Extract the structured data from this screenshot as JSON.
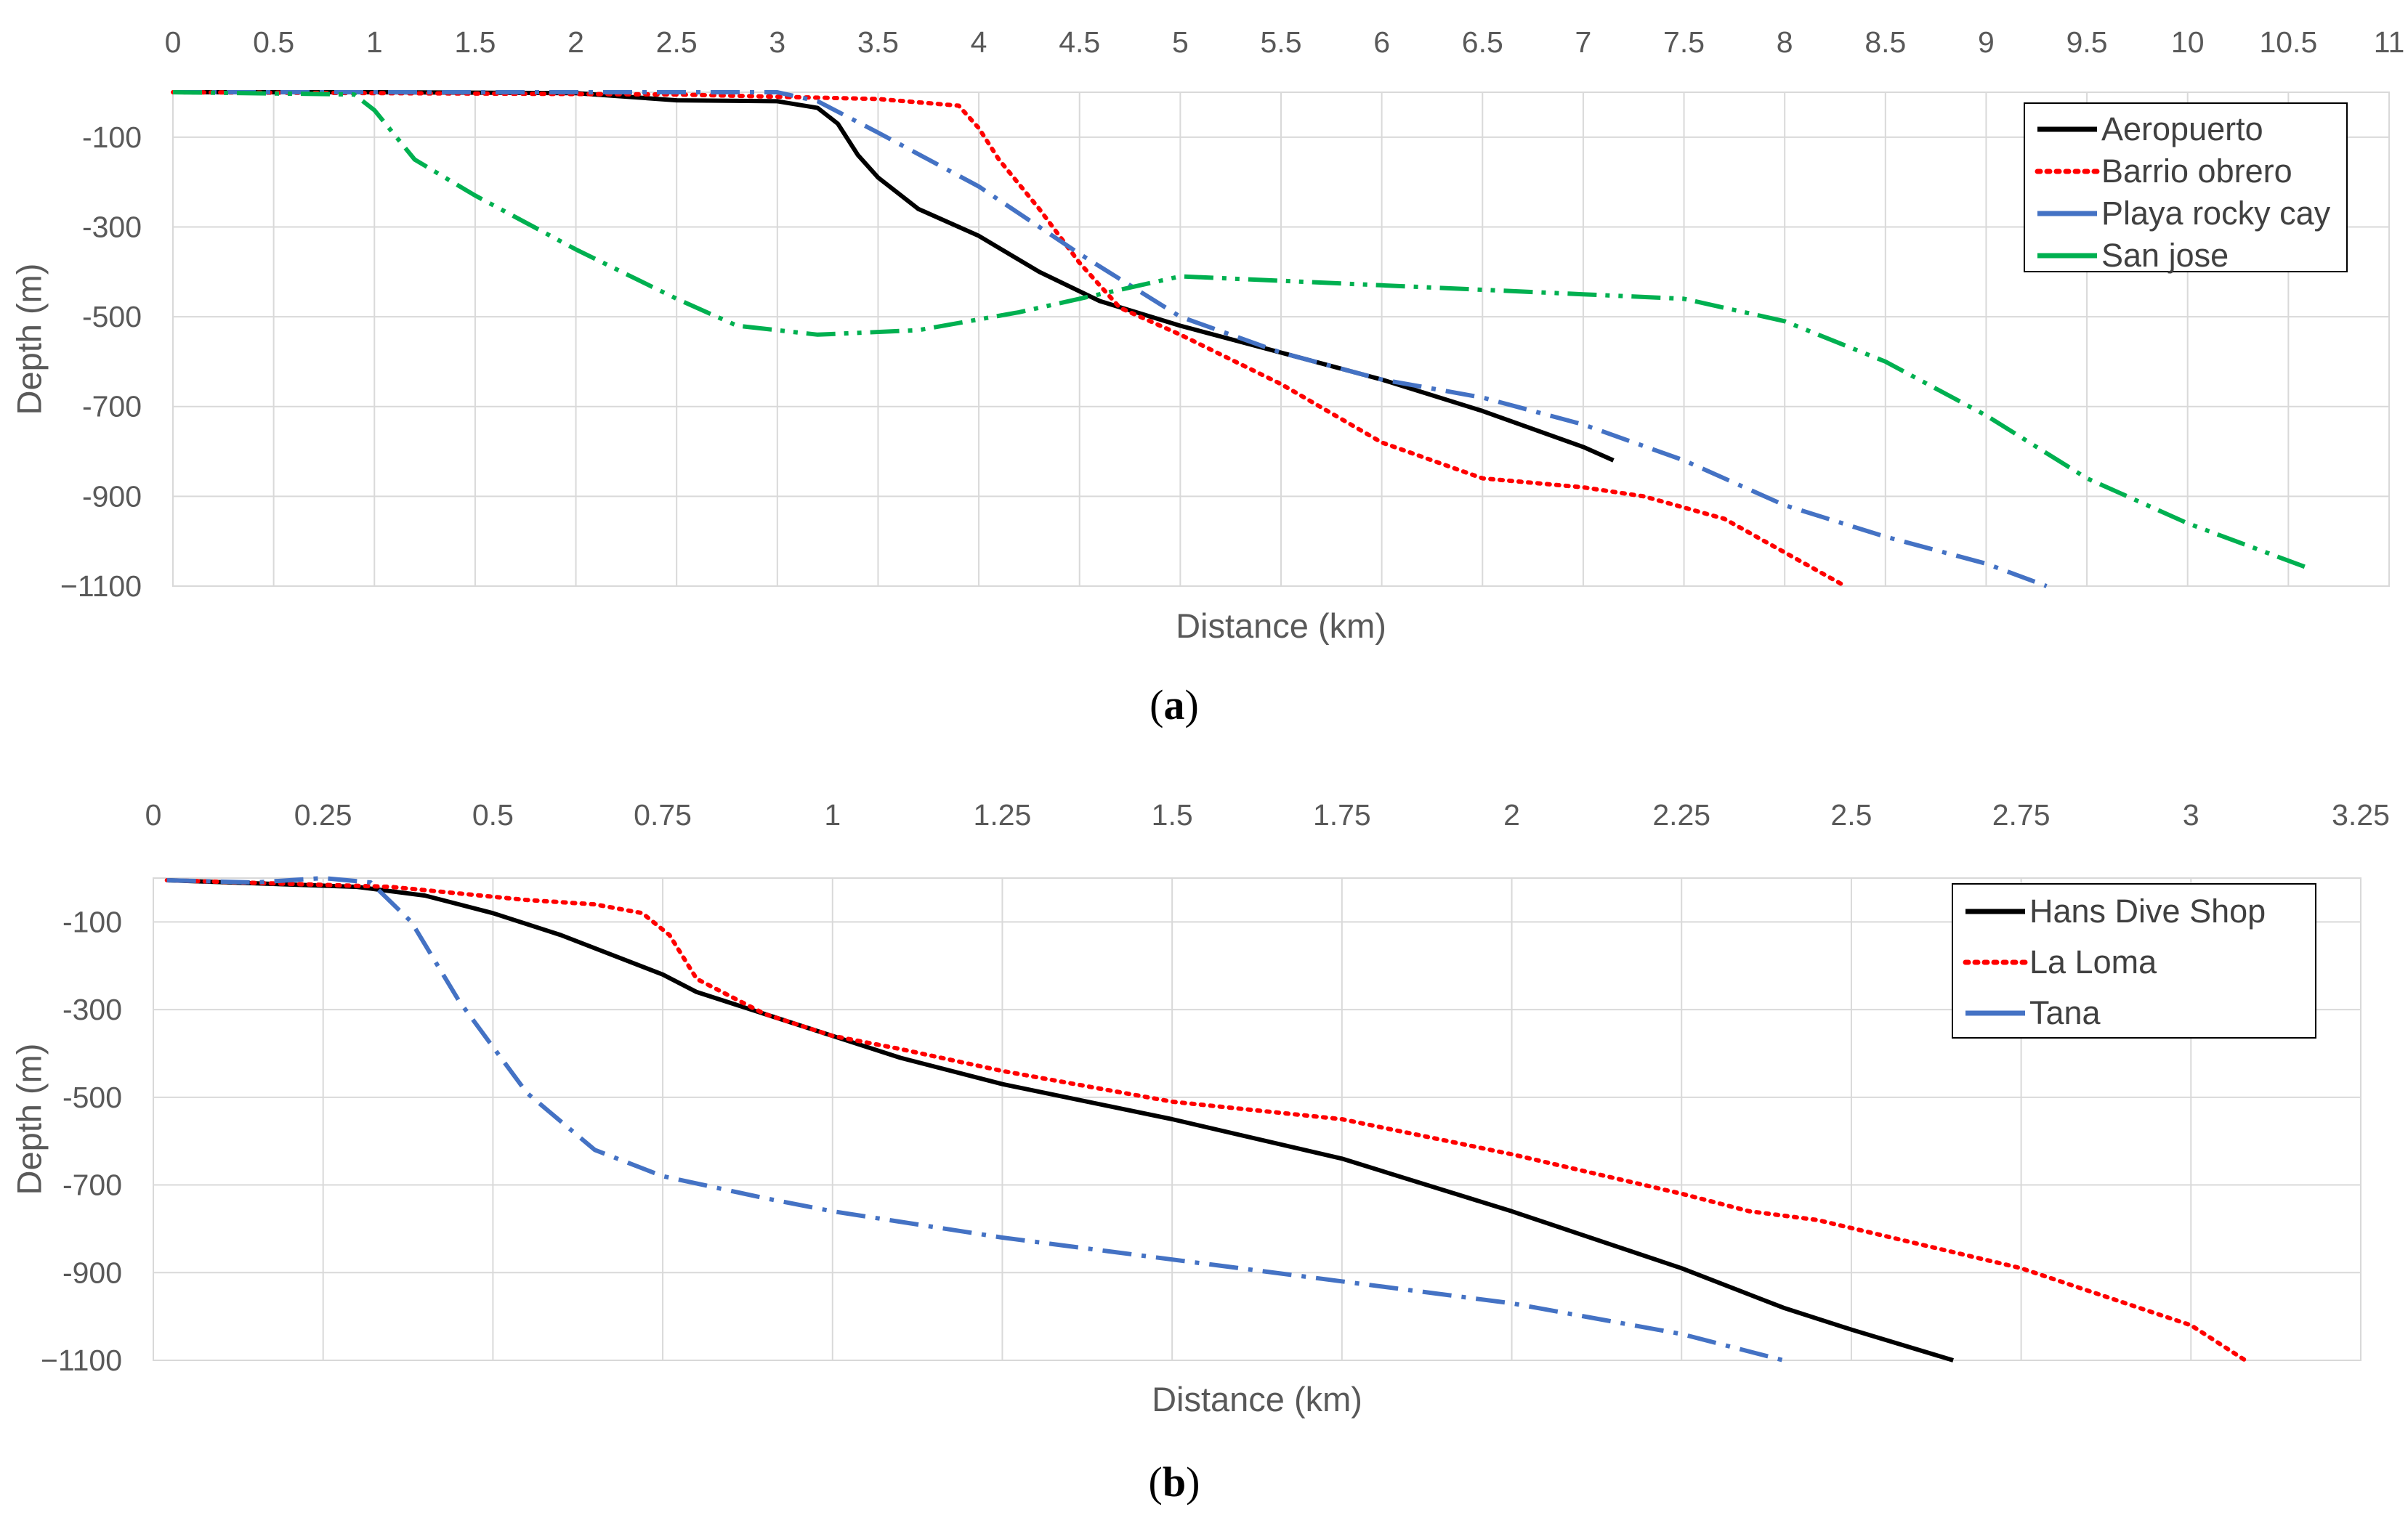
{
  "chart_data": [
    {
      "type": "line",
      "panel_label": "a",
      "xlabel": "Distance (km)",
      "ylabel": "Depth (m)",
      "xlim": [
        0,
        11
      ],
      "ylim": [
        -1100,
        0
      ],
      "x_axis_position": "top",
      "x_ticks": [
        0,
        0.5,
        1,
        1.5,
        2,
        2.5,
        3,
        3.5,
        4,
        4.5,
        5,
        5.5,
        6,
        6.5,
        7,
        7.5,
        8,
        8.5,
        9,
        9.5,
        10,
        10.5,
        11
      ],
      "x_tick_labels": [
        "0",
        "0.5",
        "1",
        "1.5",
        "2",
        "2.5",
        "3",
        "3.5",
        "4",
        "4.5",
        "5",
        "5.5",
        "6",
        "6.5",
        "7",
        "7.5",
        "8",
        "8.5",
        "9",
        "9.5",
        "10",
        "10.5",
        "11"
      ],
      "y_ticks": [
        -100,
        -300,
        -500,
        -700,
        -900,
        -1100
      ],
      "y_tick_labels": [
        "-100",
        "-300",
        "-500",
        "-700",
        "-900",
        "−1100"
      ],
      "grid": true,
      "legend_position": "top-right",
      "series": [
        {
          "name": "Aeropuerto",
          "color": "#000000",
          "dash": "solid",
          "points": [
            [
              0,
              0
            ],
            [
              1,
              0
            ],
            [
              2,
              -2
            ],
            [
              2.5,
              -18
            ],
            [
              3,
              -20
            ],
            [
              3.2,
              -35
            ],
            [
              3.3,
              -70
            ],
            [
              3.4,
              -140
            ],
            [
              3.5,
              -190
            ],
            [
              3.7,
              -260
            ],
            [
              4,
              -320
            ],
            [
              4.3,
              -400
            ],
            [
              4.6,
              -465
            ],
            [
              5,
              -520
            ],
            [
              5.5,
              -580
            ],
            [
              6,
              -640
            ],
            [
              6.5,
              -710
            ],
            [
              7,
              -790
            ],
            [
              7.15,
              -820
            ]
          ]
        },
        {
          "name": "Barrio obrero",
          "color": "#ff0000",
          "dash": "dotted",
          "points": [
            [
              0,
              0
            ],
            [
              2.5,
              -5
            ],
            [
              3.5,
              -15
            ],
            [
              3.9,
              -30
            ],
            [
              4,
              -80
            ],
            [
              4.1,
              -150
            ],
            [
              4.3,
              -260
            ],
            [
              4.5,
              -380
            ],
            [
              4.7,
              -480
            ],
            [
              5,
              -540
            ],
            [
              5.5,
              -650
            ],
            [
              6,
              -780
            ],
            [
              6.5,
              -860
            ],
            [
              7,
              -880
            ],
            [
              7.3,
              -900
            ],
            [
              7.7,
              -950
            ],
            [
              8.3,
              -1100
            ]
          ]
        },
        {
          "name": "Playa rocky cay",
          "color": "#4472c4",
          "dash": "dashdot",
          "points": [
            [
              0,
              0
            ],
            [
              3,
              0
            ],
            [
              3.2,
              -20
            ],
            [
              3.5,
              -90
            ],
            [
              4,
              -210
            ],
            [
              4.5,
              -360
            ],
            [
              5,
              -500
            ],
            [
              5.5,
              -580
            ],
            [
              6,
              -640
            ],
            [
              6.5,
              -680
            ],
            [
              7,
              -740
            ],
            [
              7.5,
              -820
            ],
            [
              8,
              -920
            ],
            [
              8.5,
              -990
            ],
            [
              9,
              -1050
            ],
            [
              9.3,
              -1100
            ]
          ]
        },
        {
          "name": "San jose",
          "color": "#00b050",
          "dash": "dashdotdot",
          "points": [
            [
              0,
              0
            ],
            [
              0.9,
              -5
            ],
            [
              1,
              -40
            ],
            [
              1.2,
              -150
            ],
            [
              1.5,
              -230
            ],
            [
              2,
              -350
            ],
            [
              2.5,
              -460
            ],
            [
              2.8,
              -520
            ],
            [
              3.2,
              -540
            ],
            [
              3.7,
              -530
            ],
            [
              4.2,
              -490
            ],
            [
              4.6,
              -450
            ],
            [
              5,
              -410
            ],
            [
              5.5,
              -420
            ],
            [
              6,
              -430
            ],
            [
              6.5,
              -440
            ],
            [
              7,
              -450
            ],
            [
              7.5,
              -460
            ],
            [
              8,
              -510
            ],
            [
              8.5,
              -600
            ],
            [
              9,
              -720
            ],
            [
              9.5,
              -860
            ],
            [
              10,
              -960
            ],
            [
              10.6,
              -1060
            ]
          ]
        }
      ]
    },
    {
      "type": "line",
      "panel_label": "b",
      "xlabel": "Distance (km)",
      "ylabel": "Depth (m)",
      "xlim": [
        0,
        3.25
      ],
      "ylim": [
        -1100,
        0
      ],
      "x_axis_position": "top",
      "x_ticks": [
        0,
        0.25,
        0.5,
        0.75,
        1,
        1.25,
        1.5,
        1.75,
        2,
        2.25,
        2.5,
        2.75,
        3,
        3.25
      ],
      "x_tick_labels": [
        "0",
        "0.25",
        "0.5",
        "0.75",
        "1",
        "1.25",
        "1.5",
        "1.75",
        "2",
        "2.25",
        "2.5",
        "2.75",
        "3",
        "3.25"
      ],
      "y_ticks": [
        -100,
        -300,
        -500,
        -700,
        -900,
        -1100
      ],
      "y_tick_labels": [
        "-100",
        "-300",
        "-500",
        "-700",
        "-900",
        "−1100"
      ],
      "grid": true,
      "legend_position": "top-right",
      "series": [
        {
          "name": "Hans Dive Shop",
          "color": "#000000",
          "dash": "solid",
          "points": [
            [
              0.02,
              -5
            ],
            [
              0.3,
              -20
            ],
            [
              0.4,
              -40
            ],
            [
              0.5,
              -80
            ],
            [
              0.6,
              -130
            ],
            [
              0.7,
              -190
            ],
            [
              0.75,
              -220
            ],
            [
              0.8,
              -260
            ],
            [
              0.9,
              -310
            ],
            [
              1,
              -360
            ],
            [
              1.1,
              -410
            ],
            [
              1.25,
              -470
            ],
            [
              1.5,
              -550
            ],
            [
              1.75,
              -640
            ],
            [
              2,
              -760
            ],
            [
              2.25,
              -890
            ],
            [
              2.4,
              -980
            ],
            [
              2.5,
              -1030
            ],
            [
              2.65,
              -1100
            ]
          ]
        },
        {
          "name": "La Loma",
          "color": "#ff0000",
          "dash": "dotted",
          "points": [
            [
              0.02,
              -5
            ],
            [
              0.35,
              -20
            ],
            [
              0.55,
              -50
            ],
            [
              0.65,
              -60
            ],
            [
              0.72,
              -80
            ],
            [
              0.76,
              -130
            ],
            [
              0.8,
              -230
            ],
            [
              0.9,
              -310
            ],
            [
              1,
              -360
            ],
            [
              1.1,
              -390
            ],
            [
              1.25,
              -440
            ],
            [
              1.5,
              -510
            ],
            [
              1.75,
              -550
            ],
            [
              2,
              -630
            ],
            [
              2.25,
              -720
            ],
            [
              2.35,
              -760
            ],
            [
              2.45,
              -780
            ],
            [
              2.75,
              -890
            ],
            [
              3,
              -1020
            ],
            [
              3.08,
              -1100
            ]
          ]
        },
        {
          "name": "Tana",
          "color": "#4472c4",
          "dash": "dashdot",
          "points": [
            [
              0.02,
              -5
            ],
            [
              0.15,
              -10
            ],
            [
              0.25,
              0
            ],
            [
              0.32,
              -10
            ],
            [
              0.38,
              -100
            ],
            [
              0.45,
              -280
            ],
            [
              0.55,
              -490
            ],
            [
              0.65,
              -620
            ],
            [
              0.75,
              -680
            ],
            [
              0.9,
              -730
            ],
            [
              1,
              -760
            ],
            [
              1.25,
              -820
            ],
            [
              1.5,
              -870
            ],
            [
              1.75,
              -920
            ],
            [
              2,
              -970
            ],
            [
              2.25,
              -1040
            ],
            [
              2.4,
              -1100
            ]
          ]
        }
      ]
    }
  ],
  "captions": [
    "a",
    "b"
  ]
}
